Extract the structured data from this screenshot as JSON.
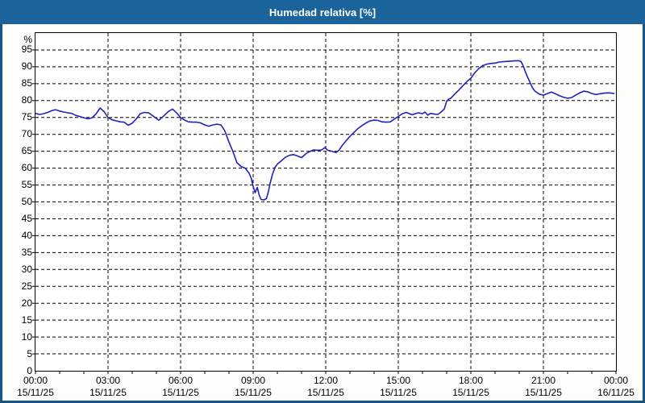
{
  "window": {
    "title": "Humedad relativa [%]"
  },
  "colors": {
    "titlebar": "#1B639B",
    "frame": "#14568C",
    "panel_bg": "#FDFEFA",
    "plot_bg": "#FFFFFF",
    "grid": "#000000",
    "axis": "#000000",
    "text": "#000000",
    "line": "#2121BD"
  },
  "chart_data": {
    "type": "line",
    "title": "Humedad relativa [%]",
    "xlabel": "",
    "ylabel": "%",
    "ylim": [
      0,
      100
    ],
    "xlim_hours": [
      0,
      24
    ],
    "grid": "dashed",
    "legend": "none",
    "y_ticks": [
      95,
      90,
      85,
      80,
      75,
      70,
      65,
      60,
      55,
      50,
      45,
      40,
      35,
      30,
      25,
      20,
      15,
      10,
      5,
      0
    ],
    "x_ticks": [
      {
        "hours": 0,
        "time": "00:00",
        "date": "15/11/25"
      },
      {
        "hours": 3,
        "time": "03:00",
        "date": "15/11/25"
      },
      {
        "hours": 6,
        "time": "06:00",
        "date": "15/11/25"
      },
      {
        "hours": 9,
        "time": "09:00",
        "date": "15/11/25"
      },
      {
        "hours": 12,
        "time": "12:00",
        "date": "15/11/25"
      },
      {
        "hours": 15,
        "time": "15:00",
        "date": "15/11/25"
      },
      {
        "hours": 18,
        "time": "18:00",
        "date": "15/11/25"
      },
      {
        "hours": 21,
        "time": "21:00",
        "date": "15/11/25"
      },
      {
        "hours": 24,
        "time": "00:00",
        "date": "16/11/25"
      }
    ],
    "series": [
      {
        "name": "Humedad relativa",
        "units": "%",
        "points": [
          [
            0.0,
            76.2
          ],
          [
            0.17,
            75.9
          ],
          [
            0.33,
            76.1
          ],
          [
            0.5,
            76.5
          ],
          [
            0.7,
            77.1
          ],
          [
            0.83,
            77.3
          ],
          [
            1.0,
            76.9
          ],
          [
            1.17,
            76.6
          ],
          [
            1.33,
            76.4
          ],
          [
            1.5,
            76.2
          ],
          [
            1.67,
            75.6
          ],
          [
            1.83,
            75.3
          ],
          [
            2.0,
            74.9
          ],
          [
            2.17,
            74.6
          ],
          [
            2.33,
            74.9
          ],
          [
            2.5,
            76.0
          ],
          [
            2.67,
            77.8
          ],
          [
            2.83,
            76.8
          ],
          [
            3.0,
            75.0
          ],
          [
            3.17,
            74.3
          ],
          [
            3.33,
            74.0
          ],
          [
            3.5,
            73.7
          ],
          [
            3.67,
            73.6
          ],
          [
            3.83,
            72.7
          ],
          [
            4.0,
            73.3
          ],
          [
            4.17,
            74.6
          ],
          [
            4.33,
            76.1
          ],
          [
            4.5,
            76.5
          ],
          [
            4.67,
            76.4
          ],
          [
            4.83,
            75.6
          ],
          [
            5.0,
            74.7
          ],
          [
            5.1,
            74.2
          ],
          [
            5.25,
            75.1
          ],
          [
            5.5,
            76.8
          ],
          [
            5.67,
            77.5
          ],
          [
            5.83,
            76.4
          ],
          [
            6.0,
            75.0
          ],
          [
            6.17,
            74.2
          ],
          [
            6.33,
            73.7
          ],
          [
            6.5,
            73.6
          ],
          [
            6.67,
            73.6
          ],
          [
            6.83,
            73.4
          ],
          [
            7.0,
            72.8
          ],
          [
            7.17,
            72.4
          ],
          [
            7.33,
            72.8
          ],
          [
            7.5,
            73.0
          ],
          [
            7.67,
            72.8
          ],
          [
            7.83,
            71.0
          ],
          [
            8.0,
            67.7
          ],
          [
            8.17,
            64.8
          ],
          [
            8.33,
            61.6
          ],
          [
            8.5,
            60.5
          ],
          [
            8.67,
            60.0
          ],
          [
            8.83,
            58.5
          ],
          [
            8.92,
            57.0
          ],
          [
            9.0,
            54.6
          ],
          [
            9.08,
            52.7
          ],
          [
            9.17,
            54.3
          ],
          [
            9.25,
            52.0
          ],
          [
            9.33,
            50.7
          ],
          [
            9.45,
            50.6
          ],
          [
            9.55,
            51.0
          ],
          [
            9.63,
            53.0
          ],
          [
            9.7,
            55.5
          ],
          [
            9.8,
            58.2
          ],
          [
            9.9,
            60.2
          ],
          [
            10.0,
            61.2
          ],
          [
            10.17,
            62.2
          ],
          [
            10.33,
            63.2
          ],
          [
            10.5,
            63.8
          ],
          [
            10.67,
            64.0
          ],
          [
            10.83,
            63.6
          ],
          [
            11.0,
            63.1
          ],
          [
            11.17,
            64.2
          ],
          [
            11.33,
            64.9
          ],
          [
            11.5,
            65.4
          ],
          [
            11.67,
            65.3
          ],
          [
            11.83,
            65.4
          ],
          [
            11.97,
            66.1
          ],
          [
            12.08,
            65.3
          ],
          [
            12.25,
            65.0
          ],
          [
            12.42,
            64.6
          ],
          [
            12.55,
            65.3
          ],
          [
            12.67,
            66.6
          ],
          [
            12.83,
            68.0
          ],
          [
            13.0,
            69.4
          ],
          [
            13.17,
            70.6
          ],
          [
            13.33,
            71.7
          ],
          [
            13.5,
            72.6
          ],
          [
            13.67,
            73.4
          ],
          [
            13.83,
            74.0
          ],
          [
            14.0,
            74.2
          ],
          [
            14.17,
            74.1
          ],
          [
            14.33,
            73.7
          ],
          [
            14.5,
            73.6
          ],
          [
            14.67,
            73.7
          ],
          [
            14.83,
            74.5
          ],
          [
            15.0,
            75.3
          ],
          [
            15.17,
            76.1
          ],
          [
            15.33,
            76.5
          ],
          [
            15.58,
            75.8
          ],
          [
            15.83,
            76.4
          ],
          [
            16.0,
            76.1
          ],
          [
            16.1,
            76.6
          ],
          [
            16.22,
            75.7
          ],
          [
            16.33,
            76.2
          ],
          [
            16.5,
            76.0
          ],
          [
            16.63,
            75.9
          ],
          [
            16.75,
            76.5
          ],
          [
            16.9,
            77.5
          ],
          [
            17.0,
            79.8
          ],
          [
            17.08,
            80.4
          ],
          [
            17.17,
            80.7
          ],
          [
            17.33,
            81.9
          ],
          [
            17.5,
            83.1
          ],
          [
            17.67,
            84.4
          ],
          [
            17.83,
            85.6
          ],
          [
            18.0,
            86.6
          ],
          [
            18.17,
            88.3
          ],
          [
            18.33,
            89.5
          ],
          [
            18.5,
            90.4
          ],
          [
            18.67,
            90.8
          ],
          [
            18.83,
            91.0
          ],
          [
            19.0,
            91.1
          ],
          [
            19.17,
            91.4
          ],
          [
            19.33,
            91.5
          ],
          [
            19.5,
            91.6
          ],
          [
            19.67,
            91.7
          ],
          [
            19.83,
            91.8
          ],
          [
            20.0,
            91.8
          ],
          [
            20.08,
            91.5
          ],
          [
            20.17,
            90.2
          ],
          [
            20.25,
            88.6
          ],
          [
            20.33,
            87.2
          ],
          [
            20.42,
            85.8
          ],
          [
            20.5,
            84.5
          ],
          [
            20.58,
            83.4
          ],
          [
            20.67,
            82.7
          ],
          [
            20.83,
            81.9
          ],
          [
            21.0,
            81.6
          ],
          [
            21.17,
            82.1
          ],
          [
            21.33,
            82.5
          ],
          [
            21.5,
            82.0
          ],
          [
            21.67,
            81.4
          ],
          [
            21.83,
            81.0
          ],
          [
            22.0,
            80.7
          ],
          [
            22.17,
            80.9
          ],
          [
            22.33,
            81.6
          ],
          [
            22.5,
            82.3
          ],
          [
            22.67,
            82.8
          ],
          [
            22.83,
            82.6
          ],
          [
            23.0,
            82.1
          ],
          [
            23.17,
            81.8
          ],
          [
            23.33,
            82.0
          ],
          [
            23.5,
            82.2
          ],
          [
            23.67,
            82.3
          ],
          [
            23.83,
            82.2
          ],
          [
            23.92,
            82.1
          ]
        ]
      }
    ]
  }
}
